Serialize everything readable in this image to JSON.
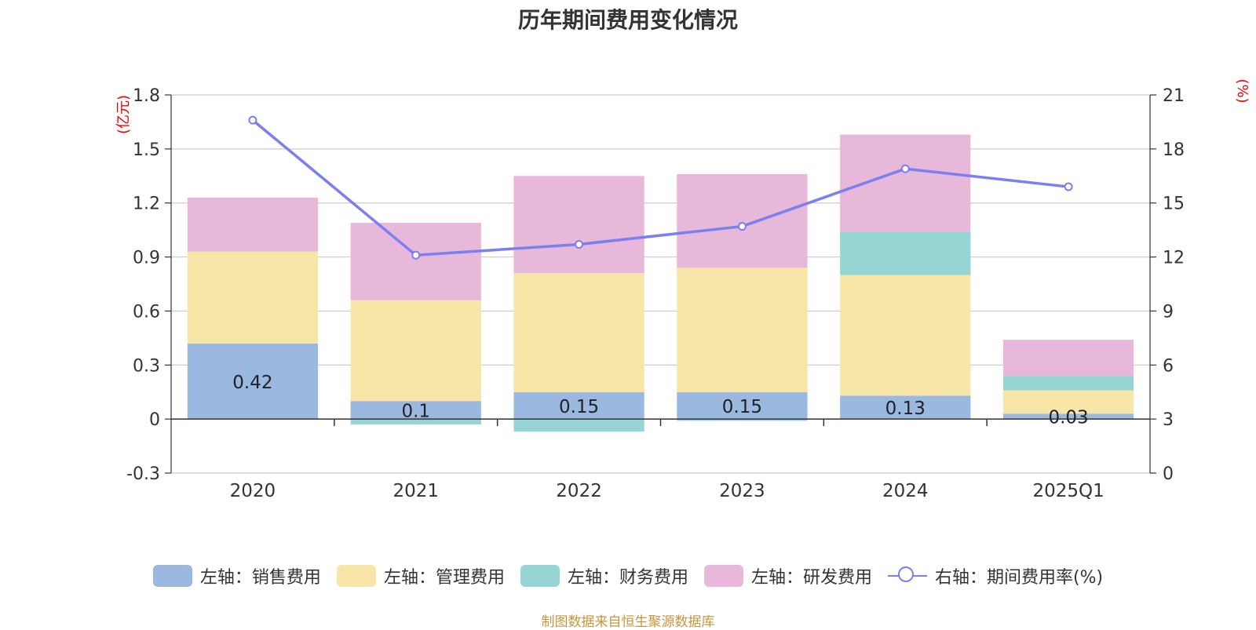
{
  "chart_data": {
    "type": "bar",
    "title": "历年期间费用变化情况",
    "categories": [
      "2020",
      "2021",
      "2022",
      "2023",
      "2024",
      "2025Q1"
    ],
    "left_axis": {
      "unit_label": "(亿元)",
      "ylim": [
        -0.3,
        1.8
      ],
      "ticks": [
        "1.8",
        "1.5",
        "1.2",
        "0.9",
        "0.6",
        "0.3",
        "0",
        "-0.3"
      ]
    },
    "right_axis": {
      "unit_label": "(%)",
      "ylim": [
        0,
        21
      ],
      "ticks": [
        "21",
        "18",
        "15",
        "12",
        "9",
        "6",
        "3",
        "0"
      ]
    },
    "series": [
      {
        "name": "左轴：销售费用",
        "color": "#9bb8e1",
        "values": [
          0.42,
          0.1,
          0.15,
          0.15,
          0.13,
          0.03
        ],
        "labels": [
          "0.42",
          "0.1",
          "0.15",
          "0.15",
          "0.13",
          "0.03"
        ]
      },
      {
        "name": "左轴：管理费用",
        "color": "#f7e6a8",
        "values": [
          0.51,
          0.56,
          0.66,
          0.69,
          0.67,
          0.13
        ]
      },
      {
        "name": "左轴：财务费用",
        "color": "#97d4d4",
        "values": [
          0.0,
          -0.03,
          -0.07,
          -0.01,
          0.24,
          0.08
        ]
      },
      {
        "name": "左轴：研发费用",
        "color": "#e7b8d9",
        "values": [
          0.3,
          0.43,
          0.54,
          0.52,
          0.54,
          0.2
        ]
      }
    ],
    "line_series": {
      "name": "右轴：期间费用率(%)",
      "color": "#7b7ff0",
      "values": [
        19.6,
        12.1,
        12.7,
        13.7,
        16.9,
        15.9
      ]
    },
    "grid": true,
    "legend_position": "bottom"
  },
  "source_note": "制图数据来自恒生聚源数据库"
}
